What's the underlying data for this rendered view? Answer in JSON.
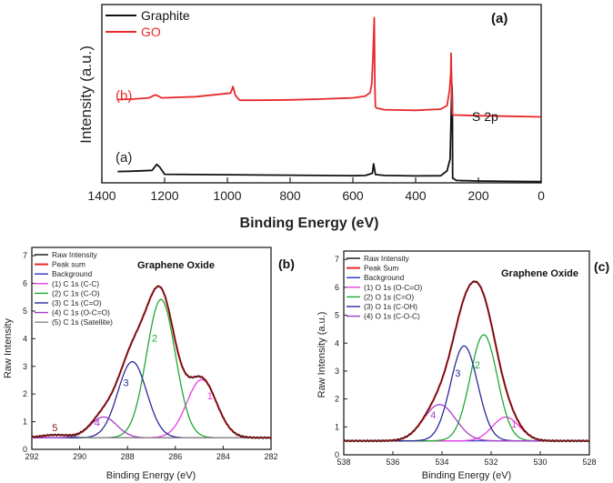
{
  "colors": {
    "black": "#111111",
    "red": "#e8282b",
    "blue": "#2433c8",
    "magenta": "#e83ce0",
    "green": "#1fa832",
    "navy": "#2a2a9a",
    "purple": "#a43ec8",
    "gray": "#8a8a8a",
    "dark_red": "#8a1010"
  },
  "chart_data": [
    {
      "panel": "a",
      "type": "line",
      "panel_label": "(a)",
      "xlabel": "Binding Energy (eV)",
      "ylabel": "Intensity (a.u.)",
      "xlim": [
        1400,
        0
      ],
      "x_ticks": [
        "1400",
        "1200",
        "1000",
        "800",
        "600",
        "400",
        "200",
        "0"
      ],
      "legend": [
        {
          "name": "Graphite",
          "color": "#111111"
        },
        {
          "name": "GO",
          "color": "#e8282b"
        }
      ],
      "annotations": {
        "b_label": "(b)",
        "a_label": "(a)",
        "s2p": "S 2p"
      },
      "series": [
        {
          "name": "Graphite",
          "color": "#111111",
          "x": [
            1350,
            1300,
            1240,
            1225,
            1215,
            1200,
            1100,
            1000,
            900,
            800,
            700,
            600,
            560,
            538,
            534,
            528,
            500,
            400,
            320,
            300,
            290,
            287,
            285,
            284,
            283,
            282,
            270,
            200,
            100,
            0
          ],
          "y": [
            0.95,
            0.98,
            1.05,
            1.55,
            1.3,
            0.72,
            0.7,
            0.68,
            0.66,
            0.64,
            0.62,
            0.6,
            0.62,
            0.8,
            1.6,
            0.7,
            0.62,
            0.58,
            0.6,
            1.0,
            2.0,
            5.6,
            7.8,
            8.2,
            7.0,
            0.4,
            0.2,
            0.15,
            0.12,
            0.1
          ]
        },
        {
          "name": "GO",
          "color": "#e8282b",
          "x": [
            1350,
            1300,
            1250,
            1230,
            1220,
            1210,
            1100,
            990,
            982,
            975,
            968,
            960,
            900,
            800,
            700,
            600,
            560,
            545,
            540,
            536,
            532,
            530,
            528,
            525,
            500,
            400,
            320,
            300,
            292,
            288,
            287,
            286,
            285,
            284,
            283,
            282,
            270,
            200,
            100,
            0
          ],
          "y": [
            7.0,
            7.05,
            7.15,
            7.4,
            7.3,
            7.15,
            7.25,
            7.55,
            8.1,
            7.4,
            7.15,
            6.95,
            6.95,
            6.98,
            7.05,
            7.15,
            7.3,
            7.6,
            8.3,
            10.6,
            13.9,
            8.0,
            6.4,
            6.3,
            6.15,
            6.1,
            6.2,
            6.5,
            7.8,
            9.2,
            10.9,
            9.5,
            8.4,
            7.0,
            6.0,
            5.7,
            5.7,
            5.65,
            5.6,
            5.55
          ]
        }
      ]
    },
    {
      "panel": "b",
      "type": "line",
      "panel_label": "(b)",
      "title": "Graphene Oxide",
      "xlabel": "Binding Energy (eV)",
      "ylabel": "Raw Intensity",
      "xlim": [
        292,
        282
      ],
      "ylim": [
        0,
        7.3
      ],
      "x_ticks": [
        "292",
        "290",
        "288",
        "286",
        "284",
        "282"
      ],
      "y_ticks": [
        "0",
        "1",
        "2",
        "3",
        "4",
        "5",
        "6",
        "7"
      ],
      "legend": [
        {
          "name": "Raw Intensity",
          "color": "#111111"
        },
        {
          "name": "Peak sum",
          "color": "#e8282b"
        },
        {
          "name": "Background",
          "color": "#2433c8"
        },
        {
          "name": "(1) C 1s (C-C)",
          "color": "#e83ce0"
        },
        {
          "name": "(2) C 1s (C-O)",
          "color": "#1fa832"
        },
        {
          "name": "(3) C 1s (C=O)",
          "color": "#2a2a9a"
        },
        {
          "name": "(4) C 1s (O-C=O)",
          "color": "#a43ec8"
        },
        {
          "name": "(5) C 1s (Satellite)",
          "color": "#8a8a8a"
        }
      ],
      "peak_labels": [
        "1",
        "2",
        "3",
        "4",
        "5"
      ],
      "background_level": 0.42,
      "peaks": [
        {
          "label": "1",
          "center": 284.9,
          "height": 2.1,
          "sigma": 0.62,
          "color": "#e83ce0"
        },
        {
          "label": "2",
          "center": 286.6,
          "height": 5.0,
          "sigma": 0.6,
          "color": "#1fa832"
        },
        {
          "label": "3",
          "center": 287.8,
          "height": 2.75,
          "sigma": 0.6,
          "color": "#2a2a9a"
        },
        {
          "label": "4",
          "center": 289.0,
          "height": 0.75,
          "sigma": 0.55,
          "color": "#a43ec8"
        },
        {
          "label": "5",
          "center": 291.0,
          "height": 0.1,
          "sigma": 0.6,
          "color": "#8a8a8a"
        }
      ]
    },
    {
      "panel": "c",
      "type": "line",
      "panel_label": "(c)",
      "title": "Graphene Oxide",
      "xlabel": "Binding Energy (eV)",
      "ylabel": "Raw Intensity (a.u.)",
      "xlim": [
        538,
        528
      ],
      "ylim": [
        0,
        7.3
      ],
      "x_ticks": [
        "538",
        "536",
        "534",
        "532",
        "530",
        "528"
      ],
      "y_ticks": [
        "0",
        "1",
        "2",
        "3",
        "4",
        "5",
        "6",
        "7"
      ],
      "legend": [
        {
          "name": "Raw Intensity",
          "color": "#111111"
        },
        {
          "name": "Peak Sum",
          "color": "#e8282b"
        },
        {
          "name": "Background",
          "color": "#2433c8"
        },
        {
          "name": "(1) O 1s (O-C=O)",
          "color": "#e83ce0"
        },
        {
          "name": "(2) O 1s (C=O)",
          "color": "#1fa832"
        },
        {
          "name": "(3) O 1s (C-OH)",
          "color": "#2a2a9a"
        },
        {
          "name": "(4) O 1s (C-O-C)",
          "color": "#a43ec8"
        }
      ],
      "peak_labels": [
        "1",
        "2",
        "3",
        "4"
      ],
      "background_level": 0.5,
      "peaks": [
        {
          "label": "1",
          "center": 531.4,
          "height": 0.85,
          "sigma": 0.55,
          "color": "#e83ce0"
        },
        {
          "label": "2",
          "center": 532.3,
          "height": 3.8,
          "sigma": 0.55,
          "color": "#1fa832"
        },
        {
          "label": "3",
          "center": 533.1,
          "height": 3.4,
          "sigma": 0.55,
          "color": "#2a2a9a"
        },
        {
          "label": "4",
          "center": 534.1,
          "height": 1.3,
          "sigma": 0.65,
          "color": "#a43ec8"
        }
      ]
    }
  ]
}
